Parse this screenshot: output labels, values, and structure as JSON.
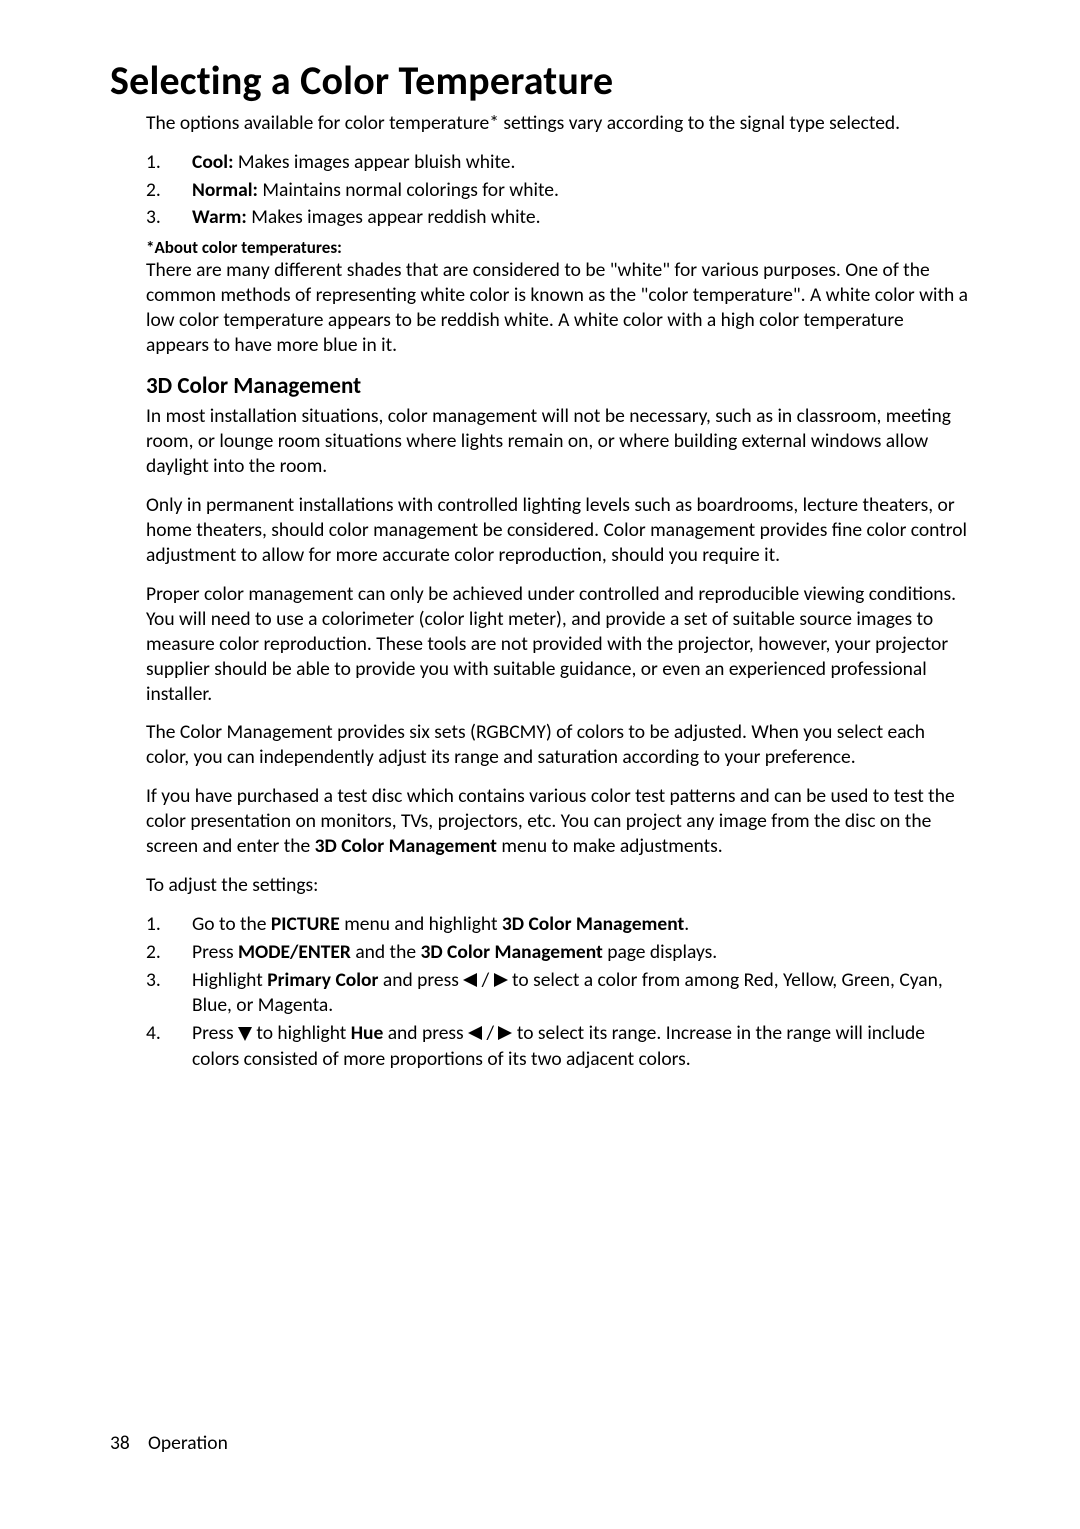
{
  "title": "Selecting a Color Temperature",
  "intro": "The options available for color temperature* settings vary according to the signal type selected.",
  "ct_options": [
    {
      "num": "1.",
      "label": "Cool:",
      "desc": " Makes images appear bluish white."
    },
    {
      "num": "2.",
      "label": "Normal:",
      "desc": " Maintains normal colorings for white."
    },
    {
      "num": "3.",
      "label": "Warm:",
      "desc": " Makes images appear reddish white."
    }
  ],
  "about_label": "*About color temperatures:",
  "about_text": "There are many different shades that are considered to be \"white\" for various purposes. One of the common methods of representing white color is known as the \"color temperature\". A white color with a low color temperature appears to be reddish white. A white color with a high color temperature appears to have more blue in it.",
  "sub_heading": "3D Color Management",
  "para1": "In most installation situations, color management will not be necessary, such as in classroom, meeting room, or lounge room situations where lights remain on, or where building external windows allow daylight into the room.",
  "para2": "Only in permanent installations with controlled lighting levels such as boardrooms, lecture theaters, or home theaters, should color management be considered. Color management provides fine color control adjustment to allow for more accurate color reproduction, should you require it.",
  "para3": "Proper color management can only be achieved under controlled and reproducible viewing conditions. You will need to use a colorimeter (color light meter), and provide a set of suitable source images to measure color reproduction. These tools are not provided with the projector, however, your projector supplier should be able to provide you with suitable guidance, or even an experienced professional installer.",
  "para4": "The Color Management provides six sets (RGBCMY) of colors to be adjusted. When you select each color, you can independently adjust its range and saturation according to your preference.",
  "para5_pre": "If you have purchased a test disc which contains various color test patterns and can be used to test the color presentation on monitors, TVs, projectors, etc. You can project any image from the disc on the screen and enter the ",
  "para5_bold": "3D Color Management",
  "para5_post": " menu to make adjustments.",
  "adjust_label": "To adjust the settings:",
  "steps": {
    "s1": {
      "num": "1.",
      "pre": "Go to the ",
      "b1": "PICTURE",
      "mid": " menu and highlight ",
      "b2": "3D Color Management",
      "post": "."
    },
    "s2": {
      "num": "2.",
      "pre": "Press ",
      "b1": "MODE/ENTER",
      "mid": " and the ",
      "b2": "3D Color Management",
      "post": " page displays."
    },
    "s3": {
      "num": "3.",
      "pre": "Highlight ",
      "b1": "Primary Color",
      "mid": " and press ",
      "post": " to select a color from among Red, Yellow, Green, Cyan, Blue, or Magenta."
    },
    "s4": {
      "num": "4.",
      "pre": "Press ",
      "mid1": " to highlight ",
      "b1": "Hue",
      "mid2": " and press ",
      "post": " to select its range. Increase in the range will include colors consisted of more proportions of its two adjacent colors."
    }
  },
  "footer": {
    "page": "38",
    "section": "Operation"
  }
}
